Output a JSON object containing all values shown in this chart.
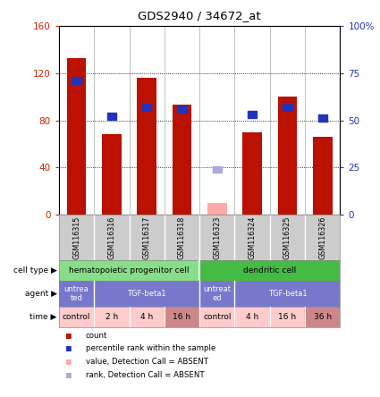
{
  "title": "GDS2940 / 34672_at",
  "samples": [
    "GSM116315",
    "GSM116316",
    "GSM116317",
    "GSM116318",
    "GSM116323",
    "GSM116324",
    "GSM116325",
    "GSM116326"
  ],
  "count_values": [
    133,
    68,
    116,
    93,
    null,
    70,
    100,
    66
  ],
  "count_absent_values": [
    null,
    null,
    null,
    null,
    10,
    null,
    null,
    null
  ],
  "rank_values": [
    71,
    52,
    57,
    56,
    null,
    53,
    57,
    51
  ],
  "rank_absent_values": [
    null,
    null,
    null,
    null,
    24,
    null,
    null,
    null
  ],
  "ylim_left": [
    0,
    160
  ],
  "ylim_right": [
    0,
    100
  ],
  "yticks_left": [
    0,
    40,
    80,
    120,
    160
  ],
  "yticks_right": [
    0,
    25,
    50,
    75,
    100
  ],
  "ytick_labels_left": [
    "0",
    "40",
    "80",
    "120",
    "160"
  ],
  "ytick_labels_right": [
    "0",
    "25",
    "50",
    "75",
    "100%"
  ],
  "bar_color": "#bb1100",
  "bar_absent_color": "#ffaaaa",
  "rank_color": "#2233bb",
  "rank_absent_color": "#aaaadd",
  "cell_type_left_color": "#88dd88",
  "cell_type_right_color": "#44bb44",
  "agent_color": "#7777cc",
  "agent_text_color": "#ffffff",
  "time_color": "#ffcccc",
  "time_dark_color": "#cc8888",
  "cell_types": [
    {
      "label": "hematopoietic progenitor cell",
      "start": 0,
      "end": 4,
      "color": "#88dd88"
    },
    {
      "label": "dendritic cell",
      "start": 4,
      "end": 8,
      "color": "#44bb44"
    }
  ],
  "agents": [
    {
      "label": "untrea\nted",
      "start": 0,
      "end": 1
    },
    {
      "label": "TGF-beta1",
      "start": 1,
      "end": 4
    },
    {
      "label": "untreat\ned",
      "start": 4,
      "end": 5
    },
    {
      "label": "TGF-beta1",
      "start": 5,
      "end": 8
    }
  ],
  "times": [
    {
      "label": "control",
      "start": 0,
      "end": 1,
      "dark": false
    },
    {
      "label": "2 h",
      "start": 1,
      "end": 2,
      "dark": false
    },
    {
      "label": "4 h",
      "start": 2,
      "end": 3,
      "dark": false
    },
    {
      "label": "16 h",
      "start": 3,
      "end": 4,
      "dark": true
    },
    {
      "label": "control",
      "start": 4,
      "end": 5,
      "dark": false
    },
    {
      "label": "4 h",
      "start": 5,
      "end": 6,
      "dark": false
    },
    {
      "label": "16 h",
      "start": 6,
      "end": 7,
      "dark": false
    },
    {
      "label": "36 h",
      "start": 7,
      "end": 8,
      "dark": true
    }
  ],
  "legend_items": [
    {
      "color": "#bb1100",
      "label": "count"
    },
    {
      "color": "#2233bb",
      "label": "percentile rank within the sample"
    },
    {
      "color": "#ffaaaa",
      "label": "value, Detection Call = ABSENT"
    },
    {
      "color": "#aaaadd",
      "label": "rank, Detection Call = ABSENT"
    }
  ],
  "background_color": "#ffffff",
  "plot_bg_color": "#ffffff",
  "sample_label_bg": "#cccccc",
  "row_label_color": "#000000"
}
